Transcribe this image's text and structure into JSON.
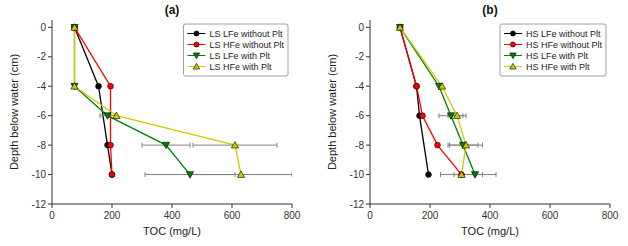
{
  "chart_data": [
    {
      "type": "line",
      "title": "(a)",
      "xlabel": "TOC (mg/L)",
      "ylabel": "Depth below water (cm)",
      "xlim": [
        0,
        800
      ],
      "ylim": [
        -12,
        0.5
      ],
      "xticks": [
        0,
        200,
        400,
        600,
        800
      ],
      "yticks": [
        0,
        -2,
        -4,
        -6,
        -8,
        -10,
        -12
      ],
      "legend": "upper-right",
      "series": [
        {
          "name": "LS LFe without Plt",
          "color": "black",
          "marker": "circle",
          "x": [
            75,
            155,
            185,
            200
          ],
          "values": [
            0,
            -4,
            -8,
            -10
          ],
          "xerr": [
            0,
            0,
            0,
            0
          ]
        },
        {
          "name": "LS HFe without Plt",
          "color": "red",
          "marker": "circle",
          "x": [
            75,
            195,
            195,
            200
          ],
          "values": [
            0,
            -4,
            -8,
            -10
          ],
          "xerr": [
            0,
            0,
            0,
            0
          ]
        },
        {
          "name": "LS LFe with Plt",
          "color": "green",
          "marker": "triangle-down",
          "x": [
            75,
            75,
            185,
            380,
            460
          ],
          "values": [
            0,
            -4,
            -6,
            -8,
            -10
          ],
          "xerr": [
            0,
            0,
            25,
            80,
            150
          ]
        },
        {
          "name": "LS HFe with Plt",
          "color": "#cccc00",
          "marker": "triangle-up",
          "x": [
            75,
            75,
            215,
            610,
            630
          ],
          "values": [
            0,
            -4,
            -6,
            -8,
            -10
          ],
          "xerr": [
            0,
            0,
            0,
            140,
            170
          ]
        }
      ]
    },
    {
      "type": "line",
      "title": "(b)",
      "xlabel": "TOC (mg/L)",
      "ylabel": "Depth below water (cm)",
      "xlim": [
        0,
        800
      ],
      "ylim": [
        -12,
        0.5
      ],
      "xticks": [
        0,
        200,
        400,
        600,
        800
      ],
      "yticks": [
        0,
        -2,
        -4,
        -6,
        -8,
        -10,
        -12
      ],
      "legend": "upper-right",
      "series": [
        {
          "name": "HS LFe without Plt",
          "color": "black",
          "marker": "circle",
          "x": [
            100,
            155,
            165,
            195
          ],
          "values": [
            0,
            -4,
            -6,
            -10
          ],
          "xerr": [
            0,
            0,
            0,
            0
          ]
        },
        {
          "name": "HS HFe without Plt",
          "color": "red",
          "marker": "circle",
          "x": [
            100,
            155,
            175,
            225,
            305
          ],
          "values": [
            0,
            -4,
            -6,
            -8,
            -10
          ],
          "xerr": [
            0,
            0,
            0,
            0,
            0
          ]
        },
        {
          "name": "HS LFe with Plt",
          "color": "green",
          "marker": "triangle-down",
          "x": [
            100,
            230,
            270,
            310,
            350
          ],
          "values": [
            0,
            -4,
            -6,
            -8,
            -10
          ],
          "xerr": [
            0,
            0,
            40,
            50,
            70
          ]
        },
        {
          "name": "HS HFe with Plt",
          "color": "#cccc00",
          "marker": "triangle-up",
          "x": [
            100,
            240,
            290,
            320,
            305
          ],
          "values": [
            0,
            -4,
            -6,
            -8,
            -10
          ],
          "xerr": [
            0,
            0,
            30,
            55,
            70
          ]
        }
      ]
    }
  ]
}
